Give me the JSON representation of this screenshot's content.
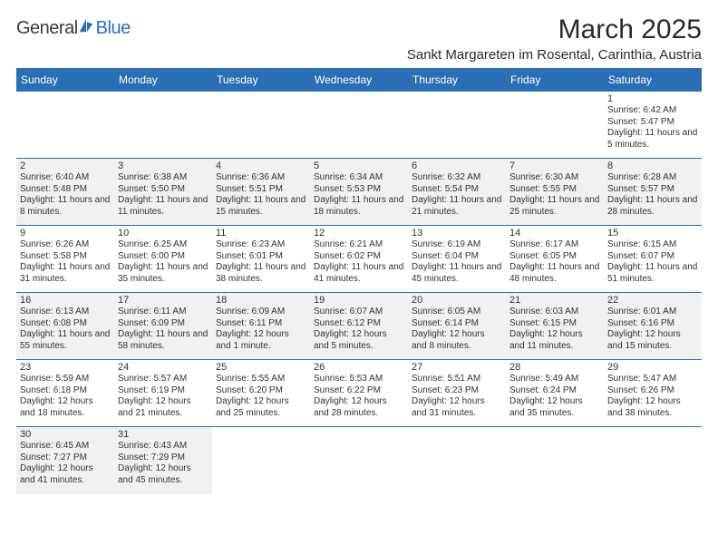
{
  "logo": {
    "part1": "General",
    "part2": "Blue"
  },
  "title": "March 2025",
  "location": "Sankt Margareten im Rosental, Carinthia, Austria",
  "colors": {
    "accent": "#2a6fb5",
    "shade": "#f1f1f1",
    "text": "#2b2b2b"
  },
  "weekdays": [
    "Sunday",
    "Monday",
    "Tuesday",
    "Wednesday",
    "Thursday",
    "Friday",
    "Saturday"
  ],
  "days": {
    "1": {
      "sr": "6:42 AM",
      "ss": "5:47 PM",
      "dl": "11 hours and 5 minutes."
    },
    "2": {
      "sr": "6:40 AM",
      "ss": "5:48 PM",
      "dl": "11 hours and 8 minutes."
    },
    "3": {
      "sr": "6:38 AM",
      "ss": "5:50 PM",
      "dl": "11 hours and 11 minutes."
    },
    "4": {
      "sr": "6:36 AM",
      "ss": "5:51 PM",
      "dl": "11 hours and 15 minutes."
    },
    "5": {
      "sr": "6:34 AM",
      "ss": "5:53 PM",
      "dl": "11 hours and 18 minutes."
    },
    "6": {
      "sr": "6:32 AM",
      "ss": "5:54 PM",
      "dl": "11 hours and 21 minutes."
    },
    "7": {
      "sr": "6:30 AM",
      "ss": "5:55 PM",
      "dl": "11 hours and 25 minutes."
    },
    "8": {
      "sr": "6:28 AM",
      "ss": "5:57 PM",
      "dl": "11 hours and 28 minutes."
    },
    "9": {
      "sr": "6:26 AM",
      "ss": "5:58 PM",
      "dl": "11 hours and 31 minutes."
    },
    "10": {
      "sr": "6:25 AM",
      "ss": "6:00 PM",
      "dl": "11 hours and 35 minutes."
    },
    "11": {
      "sr": "6:23 AM",
      "ss": "6:01 PM",
      "dl": "11 hours and 38 minutes."
    },
    "12": {
      "sr": "6:21 AM",
      "ss": "6:02 PM",
      "dl": "11 hours and 41 minutes."
    },
    "13": {
      "sr": "6:19 AM",
      "ss": "6:04 PM",
      "dl": "11 hours and 45 minutes."
    },
    "14": {
      "sr": "6:17 AM",
      "ss": "6:05 PM",
      "dl": "11 hours and 48 minutes."
    },
    "15": {
      "sr": "6:15 AM",
      "ss": "6:07 PM",
      "dl": "11 hours and 51 minutes."
    },
    "16": {
      "sr": "6:13 AM",
      "ss": "6:08 PM",
      "dl": "11 hours and 55 minutes."
    },
    "17": {
      "sr": "6:11 AM",
      "ss": "6:09 PM",
      "dl": "11 hours and 58 minutes."
    },
    "18": {
      "sr": "6:09 AM",
      "ss": "6:11 PM",
      "dl": "12 hours and 1 minute."
    },
    "19": {
      "sr": "6:07 AM",
      "ss": "6:12 PM",
      "dl": "12 hours and 5 minutes."
    },
    "20": {
      "sr": "6:05 AM",
      "ss": "6:14 PM",
      "dl": "12 hours and 8 minutes."
    },
    "21": {
      "sr": "6:03 AM",
      "ss": "6:15 PM",
      "dl": "12 hours and 11 minutes."
    },
    "22": {
      "sr": "6:01 AM",
      "ss": "6:16 PM",
      "dl": "12 hours and 15 minutes."
    },
    "23": {
      "sr": "5:59 AM",
      "ss": "6:18 PM",
      "dl": "12 hours and 18 minutes."
    },
    "24": {
      "sr": "5:57 AM",
      "ss": "6:19 PM",
      "dl": "12 hours and 21 minutes."
    },
    "25": {
      "sr": "5:55 AM",
      "ss": "6:20 PM",
      "dl": "12 hours and 25 minutes."
    },
    "26": {
      "sr": "5:53 AM",
      "ss": "6:22 PM",
      "dl": "12 hours and 28 minutes."
    },
    "27": {
      "sr": "5:51 AM",
      "ss": "6:23 PM",
      "dl": "12 hours and 31 minutes."
    },
    "28": {
      "sr": "5:49 AM",
      "ss": "6:24 PM",
      "dl": "12 hours and 35 minutes."
    },
    "29": {
      "sr": "5:47 AM",
      "ss": "6:26 PM",
      "dl": "12 hours and 38 minutes."
    },
    "30": {
      "sr": "6:45 AM",
      "ss": "7:27 PM",
      "dl": "12 hours and 41 minutes."
    },
    "31": {
      "sr": "6:43 AM",
      "ss": "7:29 PM",
      "dl": "12 hours and 45 minutes."
    }
  },
  "labels": {
    "sunrise": "Sunrise: ",
    "sunset": "Sunset: ",
    "daylight": "Daylight: "
  },
  "grid": {
    "startOffset": 6,
    "numDays": 31,
    "shadedRows": [
      1,
      3,
      5
    ]
  }
}
